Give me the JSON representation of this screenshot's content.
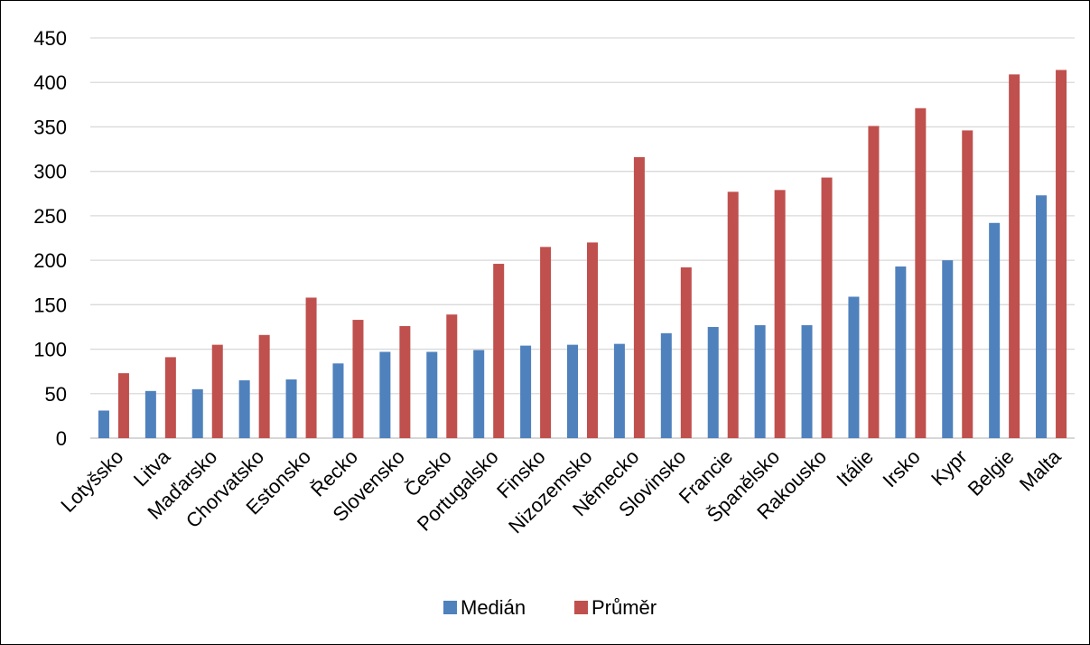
{
  "chart_data": {
    "type": "bar",
    "categories": [
      "Lotyšsko",
      "Litva",
      "Maďarsko",
      "Chorvatsko",
      "Estonsko",
      "Řecko",
      "Slovensko",
      "Česko",
      "Portugalsko",
      "Finsko",
      "Nizozemsko",
      "Německo",
      "Slovinsko",
      "Francie",
      "Španělsko",
      "Rakousko",
      "Itálie",
      "Irsko",
      "Kypr",
      "Belgie",
      "Malta"
    ],
    "series": [
      {
        "name": "Medián",
        "color": "#4f81bd",
        "values": [
          31,
          53,
          55,
          65,
          66,
          84,
          97,
          97,
          99,
          104,
          105,
          106,
          118,
          125,
          127,
          127,
          159,
          193,
          200,
          242,
          273
        ]
      },
      {
        "name": "Průměr",
        "color": "#c0504d",
        "values": [
          73,
          91,
          105,
          116,
          158,
          133,
          126,
          139,
          196,
          215,
          220,
          316,
          192,
          277,
          279,
          293,
          351,
          371,
          346,
          409,
          414
        ]
      }
    ],
    "yticks": [
      0,
      50,
      100,
      150,
      200,
      250,
      300,
      350,
      400,
      450
    ],
    "ylim": [
      0,
      450
    ],
    "grid": true,
    "legend_position": "bottom"
  }
}
